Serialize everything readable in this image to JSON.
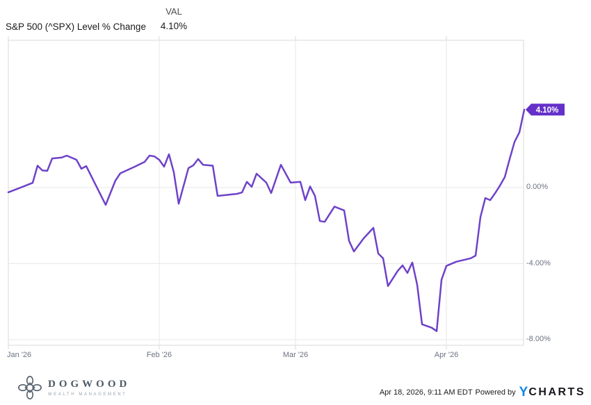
{
  "header": {
    "title": "S&P 500 (^SPX) Level % Change",
    "val_label": "VAL",
    "val_value": "4.10%"
  },
  "chart_data": {
    "type": "line",
    "title": "S&P 500 (^SPX) Level % Change",
    "series_name": "S&P 500 (^SPX) Level % Change",
    "x_unit": "day of year 2026 (Jan 1 = 1)",
    "date_range": "Jan 1 2026 - Apr 17 2026",
    "line_color": "#6E42C8",
    "end_label": "4.10%",
    "end_label_bg": "#6430C9",
    "grid_color": "#E7E7E7",
    "border_color": "#D9D9D9",
    "label_color": "#6B7280",
    "grid": true,
    "legend_position": "none",
    "ylim": [
      -8.3,
      7.75
    ],
    "y_gridlines": [
      {
        "label": "0.00%",
        "value": 0
      },
      {
        "label": "-4.00%",
        "value": -4
      },
      {
        "label": "-8.00%",
        "value": -8
      }
    ],
    "x_ticks": [
      {
        "label": "Jan '26",
        "day": 1
      },
      {
        "label": "Feb '26",
        "day": 32
      },
      {
        "label": "Mar '26",
        "day": 60
      },
      {
        "label": "Apr '26",
        "day": 91
      }
    ],
    "points": [
      [
        1,
        -0.25
      ],
      [
        3,
        -0.05
      ],
      [
        6,
        0.25
      ],
      [
        7,
        1.15
      ],
      [
        8,
        0.9
      ],
      [
        9,
        0.88
      ],
      [
        10,
        1.53
      ],
      [
        12,
        1.58
      ],
      [
        13,
        1.68
      ],
      [
        15,
        1.46
      ],
      [
        16,
        0.99
      ],
      [
        17,
        1.13
      ],
      [
        21,
        -0.91
      ],
      [
        23,
        0.37
      ],
      [
        24,
        0.75
      ],
      [
        27,
        1.1
      ],
      [
        29,
        1.35
      ],
      [
        30,
        1.68
      ],
      [
        31,
        1.64
      ],
      [
        32,
        1.46
      ],
      [
        33,
        1.1
      ],
      [
        34,
        1.75
      ],
      [
        35,
        0.8
      ],
      [
        36,
        -0.85
      ],
      [
        38,
        1.02
      ],
      [
        39,
        1.17
      ],
      [
        40,
        1.5
      ],
      [
        41,
        1.2
      ],
      [
        43,
        1.15
      ],
      [
        44,
        -0.44
      ],
      [
        48,
        -0.33
      ],
      [
        49,
        -0.26
      ],
      [
        50,
        0.3
      ],
      [
        51,
        0.04
      ],
      [
        52,
        0.73
      ],
      [
        54,
        0.26
      ],
      [
        55,
        -0.29
      ],
      [
        57,
        1.2
      ],
      [
        59,
        0.26
      ],
      [
        61,
        0.3
      ],
      [
        62,
        -0.66
      ],
      [
        63,
        0.06
      ],
      [
        64,
        -0.44
      ],
      [
        65,
        -1.76
      ],
      [
        66,
        -1.8
      ],
      [
        68,
        -1.0
      ],
      [
        70,
        -1.2
      ],
      [
        71,
        -2.8
      ],
      [
        72,
        -3.36
      ],
      [
        74,
        -2.67
      ],
      [
        76,
        -2.12
      ],
      [
        77,
        -3.47
      ],
      [
        78,
        -3.72
      ],
      [
        79,
        -5.18
      ],
      [
        81,
        -4.38
      ],
      [
        82,
        -4.09
      ],
      [
        83,
        -4.49
      ],
      [
        84,
        -3.94
      ],
      [
        85,
        -5.11
      ],
      [
        86,
        -7.19
      ],
      [
        88,
        -7.37
      ],
      [
        89,
        -7.55
      ],
      [
        90,
        -4.85
      ],
      [
        91,
        -4.12
      ],
      [
        93,
        -3.9
      ],
      [
        96,
        -3.72
      ],
      [
        97,
        -3.58
      ],
      [
        98,
        -1.55
      ],
      [
        99,
        -0.55
      ],
      [
        100,
        -0.66
      ],
      [
        101,
        -0.3
      ],
      [
        102,
        0.1
      ],
      [
        103,
        0.55
      ],
      [
        104,
        1.5
      ],
      [
        105,
        2.4
      ],
      [
        106,
        2.9
      ],
      [
        107,
        4.1
      ]
    ]
  },
  "footer": {
    "logo_name": "DOGWOOD",
    "logo_sub": "WEALTH MANAGEMENT",
    "timestamp": "Apr 18, 2026, 9:11 AM EDT",
    "powered_by": "Powered by",
    "ycharts_y": "Y",
    "ycharts_rest": "CHARTS"
  }
}
